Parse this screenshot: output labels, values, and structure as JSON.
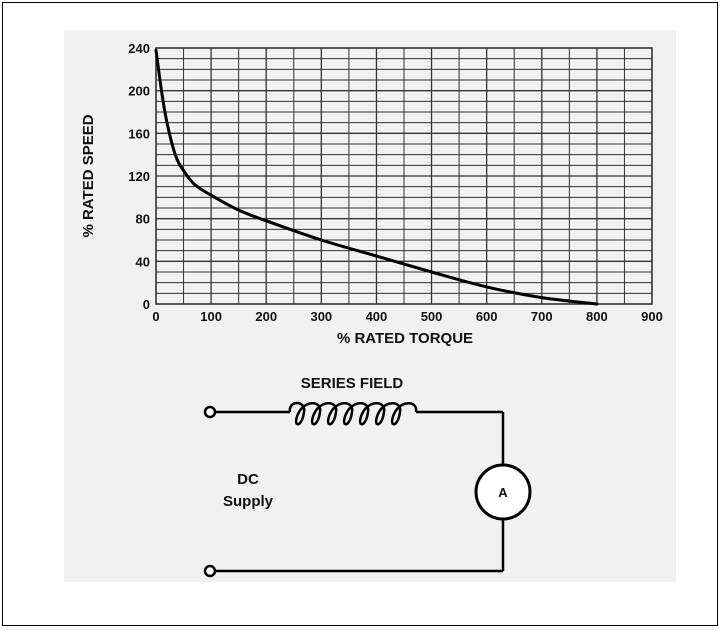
{
  "chart_data": {
    "type": "line",
    "xlabel": "% RATED TORQUE",
    "ylabel": "% RATED SPEED",
    "xlim": [
      0,
      900
    ],
    "ylim": [
      0,
      240
    ],
    "x_ticks": [
      0,
      100,
      200,
      300,
      400,
      500,
      600,
      700,
      800,
      900
    ],
    "y_ticks": [
      0,
      40,
      80,
      120,
      160,
      200,
      240
    ],
    "grid": true,
    "series": [
      {
        "x": [
          0,
          10,
          20,
          35,
          50,
          70,
          100,
          150,
          200,
          300,
          400,
          500,
          600,
          700,
          800
        ],
        "y": [
          238,
          200,
          170,
          140,
          125,
          112,
          102,
          88,
          78,
          60,
          45,
          30,
          16,
          6,
          0
        ]
      }
    ]
  },
  "diagram": {
    "series_field_label": "SERIES FIELD",
    "supply_label_line1": "DC",
    "supply_label_line2": "Supply",
    "meter_label": "A"
  },
  "colors": {
    "line": "#000000",
    "grid": "#333333",
    "panel": "#f1f1f1"
  }
}
